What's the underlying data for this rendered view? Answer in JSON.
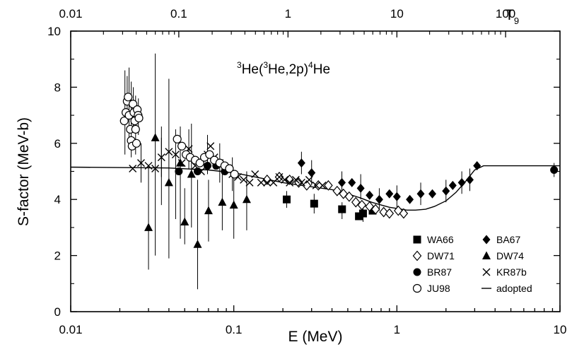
{
  "chart_data": {
    "type": "scatter",
    "title": "3He(3He,2p)4He",
    "title_parts": {
      "sup1": "3",
      "t1": "He(",
      "sup2": "3",
      "t2": "He,2p)",
      "sup3": "4",
      "t3": "He"
    },
    "xlabel": "E (MeV)",
    "ylabel": "S-factor (MeV-b)",
    "top_axis_label": {
      "base": "T",
      "sub": "9"
    },
    "x_scale": "log",
    "xlim": [
      0.01,
      10
    ],
    "ylim": [
      0,
      10
    ],
    "x_ticks": [
      "0.01",
      "0.1",
      "1",
      "10"
    ],
    "y_ticks": [
      "0",
      "2",
      "4",
      "6",
      "8",
      "10"
    ],
    "top_ticks": [
      {
        "label": "0.01",
        "E": 0.01
      },
      {
        "label": "0.1",
        "E": 0.046
      },
      {
        "label": "1",
        "E": 0.215
      },
      {
        "label": "10",
        "E": 1.0
      },
      {
        "label": "100",
        "E": 4.64
      }
    ],
    "legend_position": "bottom-right",
    "series": [
      {
        "name": "WA66",
        "marker": "square",
        "points": [
          [
            0.211,
            4.0
          ],
          [
            0.311,
            3.85
          ],
          [
            0.461,
            3.65
          ],
          [
            0.585,
            3.4
          ],
          [
            0.62,
            3.5
          ],
          [
            0.71,
            3.6
          ]
        ]
      },
      {
        "name": "BA67",
        "marker": "diamond",
        "points": [
          [
            0.26,
            5.3
          ],
          [
            0.3,
            4.95
          ],
          [
            0.46,
            4.6
          ],
          [
            0.53,
            4.6
          ],
          [
            0.6,
            4.4
          ],
          [
            0.68,
            4.15
          ],
          [
            0.78,
            4.0
          ],
          [
            0.9,
            4.2
          ],
          [
            1.0,
            4.1
          ],
          [
            1.2,
            4.0
          ],
          [
            1.4,
            4.2
          ],
          [
            1.65,
            4.2
          ],
          [
            2.0,
            4.3
          ],
          [
            2.2,
            4.5
          ],
          [
            2.5,
            4.6
          ],
          [
            2.8,
            4.7
          ],
          [
            3.1,
            5.2
          ]
        ]
      },
      {
        "name": "DW71",
        "marker": "diamond-open",
        "points": [
          [
            0.16,
            4.7
          ],
          [
            0.19,
            4.8
          ],
          [
            0.22,
            4.7
          ],
          [
            0.25,
            4.6
          ],
          [
            0.28,
            4.5
          ],
          [
            0.33,
            4.5
          ],
          [
            0.38,
            4.5
          ],
          [
            0.43,
            4.3
          ],
          [
            0.47,
            4.2
          ],
          [
            0.51,
            4.1
          ],
          [
            0.56,
            3.9
          ],
          [
            0.61,
            3.8
          ],
          [
            0.68,
            3.75
          ],
          [
            0.74,
            3.65
          ],
          [
            0.83,
            3.55
          ],
          [
            0.9,
            3.5
          ],
          [
            1.02,
            3.6
          ],
          [
            1.1,
            3.5
          ]
        ]
      },
      {
        "name": "DW74",
        "marker": "triangle",
        "points": [
          [
            0.03,
            3.0
          ],
          [
            0.033,
            6.2
          ],
          [
            0.04,
            4.6
          ],
          [
            0.047,
            5.3
          ],
          [
            0.05,
            3.2
          ],
          [
            0.055,
            4.9
          ],
          [
            0.06,
            2.4
          ],
          [
            0.07,
            3.6
          ],
          [
            0.085,
            3.9
          ],
          [
            0.1,
            3.8
          ],
          [
            0.12,
            4.0
          ]
        ]
      },
      {
        "name": "BR87",
        "marker": "circle",
        "points": [
          [
            0.046,
            5.0
          ],
          [
            0.06,
            5.0
          ],
          [
            0.069,
            5.2
          ],
          [
            0.078,
            5.2
          ],
          [
            0.088,
            5.0
          ],
          [
            9.2,
            5.05
          ]
        ]
      },
      {
        "name": "KR87b",
        "marker": "cross",
        "points": [
          [
            0.024,
            5.1
          ],
          [
            0.027,
            5.3
          ],
          [
            0.03,
            5.2
          ],
          [
            0.033,
            5.1
          ],
          [
            0.036,
            5.5
          ],
          [
            0.04,
            5.7
          ],
          [
            0.044,
            5.6
          ],
          [
            0.048,
            5.3
          ],
          [
            0.053,
            5.8
          ],
          [
            0.058,
            5.2
          ],
          [
            0.063,
            5.0
          ],
          [
            0.069,
            5.6
          ],
          [
            0.072,
            5.9
          ],
          [
            0.076,
            5.5
          ],
          [
            0.082,
            5.3
          ],
          [
            0.09,
            5.1
          ],
          [
            0.098,
            4.9
          ],
          [
            0.106,
            4.8
          ],
          [
            0.115,
            4.7
          ],
          [
            0.125,
            4.6
          ],
          [
            0.135,
            4.9
          ],
          [
            0.147,
            4.6
          ],
          [
            0.16,
            4.6
          ],
          [
            0.175,
            4.6
          ],
          [
            0.19,
            4.8
          ],
          [
            0.205,
            4.7
          ],
          [
            0.22,
            4.6
          ],
          [
            0.24,
            4.7
          ],
          [
            0.26,
            4.6
          ],
          [
            0.29,
            4.7
          ],
          [
            0.32,
            4.5
          ],
          [
            0.35,
            4.5
          ]
        ]
      },
      {
        "name": "JU98",
        "marker": "circle-open",
        "points": [
          [
            0.0213,
            6.8
          ],
          [
            0.0218,
            7.1
          ],
          [
            0.0222,
            7.5
          ],
          [
            0.0225,
            7.65
          ],
          [
            0.0228,
            7.0
          ],
          [
            0.0232,
            6.5
          ],
          [
            0.0235,
            6.1
          ],
          [
            0.0238,
            5.9
          ],
          [
            0.0241,
            7.4
          ],
          [
            0.0244,
            7.1
          ],
          [
            0.0247,
            6.8
          ],
          [
            0.025,
            6.5
          ],
          [
            0.0253,
            6.0
          ],
          [
            0.0256,
            7.2
          ],
          [
            0.0259,
            7.0
          ],
          [
            0.0262,
            6.9
          ],
          [
            0.045,
            6.15
          ],
          [
            0.048,
            5.9
          ],
          [
            0.051,
            5.6
          ],
          [
            0.054,
            5.5
          ],
          [
            0.058,
            5.4
          ],
          [
            0.062,
            5.3
          ],
          [
            0.066,
            5.5
          ],
          [
            0.071,
            5.6
          ],
          [
            0.076,
            5.4
          ],
          [
            0.082,
            5.3
          ],
          [
            0.088,
            5.2
          ],
          [
            0.094,
            5.1
          ],
          [
            0.101,
            4.9
          ]
        ]
      },
      {
        "name": "adopted",
        "marker": "line",
        "points": [
          [
            0.01,
            5.15
          ],
          [
            0.04,
            5.12
          ],
          [
            0.07,
            5.05
          ],
          [
            0.1,
            4.95
          ],
          [
            0.15,
            4.75
          ],
          [
            0.2,
            4.6
          ],
          [
            0.3,
            4.45
          ],
          [
            0.4,
            4.35
          ],
          [
            0.5,
            4.2
          ],
          [
            0.6,
            4.05
          ],
          [
            0.7,
            3.9
          ],
          [
            0.8,
            3.8
          ],
          [
            0.9,
            3.72
          ],
          [
            1.0,
            3.68
          ],
          [
            1.15,
            3.62
          ],
          [
            1.3,
            3.62
          ],
          [
            1.5,
            3.65
          ],
          [
            1.7,
            3.75
          ],
          [
            2.0,
            3.95
          ],
          [
            2.3,
            4.25
          ],
          [
            2.6,
            4.6
          ],
          [
            3.0,
            5.05
          ],
          [
            3.4,
            5.2
          ],
          [
            10,
            5.2
          ]
        ]
      }
    ],
    "error_bars": [
      [
        0.0215,
        8.6,
        5.6
      ],
      [
        0.0222,
        8.4,
        6.8
      ],
      [
        0.0228,
        8.7,
        5.9
      ],
      [
        0.0235,
        8.2,
        5.5
      ],
      [
        0.0242,
        8.0,
        6.4
      ],
      [
        0.025,
        7.7,
        5.6
      ],
      [
        0.026,
        7.6,
        6.3
      ],
      [
        0.03,
        5.2,
        1.5
      ],
      [
        0.033,
        9.2,
        2.0
      ],
      [
        0.036,
        6.6,
        3.8
      ],
      [
        0.04,
        8.3,
        1.9
      ],
      [
        0.044,
        6.5,
        3.3
      ],
      [
        0.047,
        6.6,
        2.6
      ],
      [
        0.05,
        4.4,
        2.4
      ],
      [
        0.055,
        6.7,
        3.0
      ],
      [
        0.06,
        4.7,
        0.8
      ],
      [
        0.07,
        4.7,
        2.5
      ],
      [
        0.085,
        4.9,
        2.9
      ],
      [
        0.1,
        5.0,
        2.6
      ],
      [
        0.12,
        5.0,
        2.9
      ],
      [
        0.027,
        6.0,
        4.6
      ],
      [
        0.036,
        6.2,
        4.8
      ],
      [
        0.053,
        6.5,
        5.1
      ],
      [
        0.069,
        6.3,
        4.9
      ],
      [
        0.082,
        6.0,
        4.6
      ],
      [
        0.098,
        5.5,
        4.3
      ],
      [
        0.26,
        5.7,
        4.9
      ],
      [
        0.3,
        5.4,
        4.5
      ],
      [
        0.46,
        5.0,
        4.2
      ],
      [
        0.6,
        4.9,
        4.0
      ],
      [
        0.78,
        4.4,
        3.6
      ],
      [
        1.0,
        4.5,
        3.7
      ],
      [
        1.4,
        4.6,
        3.8
      ],
      [
        2.0,
        4.7,
        3.9
      ],
      [
        2.5,
        5.0,
        4.2
      ],
      [
        2.8,
        5.1,
        4.3
      ],
      [
        9.2,
        5.3,
        4.8
      ],
      [
        0.211,
        4.3,
        3.7
      ],
      [
        0.311,
        4.2,
        3.5
      ],
      [
        0.461,
        3.9,
        3.3
      ],
      [
        0.62,
        3.8,
        3.2
      ]
    ]
  }
}
